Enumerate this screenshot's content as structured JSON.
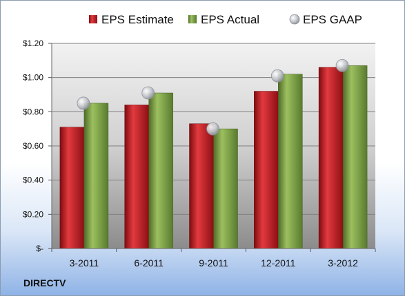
{
  "chart_data": {
    "type": "bar",
    "categories": [
      "3-2011",
      "6-2011",
      "9-2011",
      "12-2011",
      "3-2012"
    ],
    "series": [
      {
        "name": "EPS Estimate",
        "type": "bar",
        "color": "#c4181e",
        "values": [
          0.71,
          0.84,
          0.73,
          0.92,
          1.06
        ]
      },
      {
        "name": "EPS Actual",
        "type": "bar",
        "color": "#7fa24a",
        "values": [
          0.85,
          0.91,
          0.7,
          1.02,
          1.07
        ]
      },
      {
        "name": "EPS GAAP",
        "type": "scatter",
        "color": "#b8bcc4",
        "values": [
          0.85,
          0.91,
          0.7,
          1.01,
          1.07
        ]
      }
    ],
    "ylim": [
      0,
      1.2
    ],
    "yticks": [
      0,
      0.2,
      0.4,
      0.6,
      0.8,
      1.0,
      1.2
    ],
    "ytick_labels": [
      "$-",
      "$0.20",
      "$0.40",
      "$0.60",
      "$0.80",
      "$1.00",
      "$1.20"
    ],
    "legend_position": "top",
    "grid": true
  },
  "company_label": "DIRECTV"
}
